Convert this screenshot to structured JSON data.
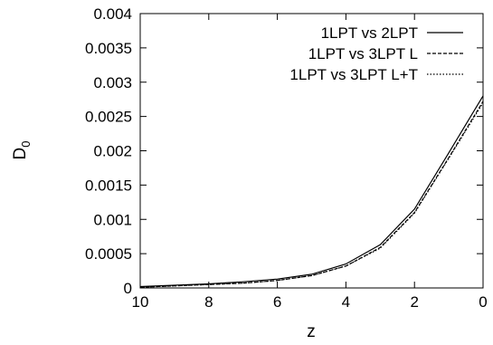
{
  "chart_data": {
    "type": "line",
    "xlabel": "z",
    "ylabel": "D",
    "ylabel_subscript": "0",
    "xlim": [
      10,
      0
    ],
    "ylim": [
      0,
      0.004
    ],
    "x_reversed": true,
    "grid": false,
    "legend_position": "top-right",
    "xticks": [
      "10",
      "8",
      "6",
      "4",
      "2",
      "0"
    ],
    "xtick_values": [
      10,
      8,
      6,
      4,
      2,
      0
    ],
    "yticks": [
      "0",
      "0.0005",
      "0.001",
      "0.0015",
      "0.002",
      "0.0025",
      "0.003",
      "0.0035",
      "0.004"
    ],
    "ytick_values": [
      0,
      0.0005,
      0.001,
      0.0015,
      0.002,
      0.0025,
      0.003,
      0.0035,
      0.004
    ],
    "x": [
      10,
      9,
      8,
      7,
      6,
      5,
      4,
      3,
      2,
      1,
      0
    ],
    "series": [
      {
        "name": "1LPT vs 2LPT",
        "style": "solid",
        "color": "#000000",
        "values": [
          2e-05,
          4e-05,
          6e-05,
          9e-05,
          0.00013,
          0.0002,
          0.00035,
          0.00063,
          0.00115,
          0.00197,
          0.0028
        ]
      },
      {
        "name": "1LPT vs 3LPT L",
        "style": "dashed",
        "color": "#000000",
        "values": [
          1e-05,
          3e-05,
          5e-05,
          7e-05,
          0.00011,
          0.00018,
          0.00032,
          0.00059,
          0.0011,
          0.0019,
          0.00272
        ]
      },
      {
        "name": "1LPT vs 3LPT L+T",
        "style": "dotted",
        "color": "#000000",
        "values": [
          1e-05,
          3e-05,
          5e-05,
          7e-05,
          0.00011,
          0.00018,
          0.00032,
          0.00058,
          0.00109,
          0.00189,
          0.0027
        ]
      }
    ]
  }
}
